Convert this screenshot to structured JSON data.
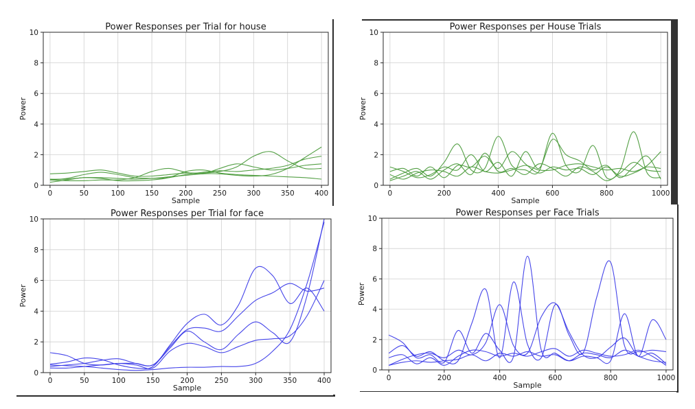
{
  "colors": {
    "house": "#4a9a3a",
    "face": "#3a3ae8"
  },
  "chart_data": [
    {
      "type": "line",
      "title": "Power Responses per Trial for house",
      "xlabel": "Sample",
      "ylabel": "Power",
      "xlim": [
        -10,
        410
      ],
      "ylim": [
        0,
        10
      ],
      "xticks": [
        0,
        50,
        100,
        150,
        200,
        250,
        300,
        350,
        400
      ],
      "yticks": [
        0,
        2,
        4,
        6,
        8,
        10
      ],
      "grid": true,
      "color": "#4a9a3a",
      "x": [
        0,
        25,
        50,
        75,
        100,
        125,
        150,
        175,
        200,
        225,
        250,
        275,
        300,
        325,
        350,
        375,
        400
      ],
      "series": [
        {
          "values": [
            0.75,
            0.8,
            0.9,
            1.0,
            0.8,
            0.6,
            0.6,
            0.7,
            0.8,
            0.8,
            0.9,
            1.2,
            1.9,
            2.2,
            1.6,
            1.1,
            1.1
          ]
        },
        {
          "values": [
            0.35,
            0.45,
            0.7,
            0.85,
            0.7,
            0.5,
            0.45,
            0.5,
            0.7,
            0.85,
            0.95,
            0.9,
            1.0,
            1.1,
            1.3,
            1.7,
            1.9
          ]
        },
        {
          "values": [
            0.4,
            0.4,
            0.5,
            0.5,
            0.45,
            0.4,
            0.45,
            0.55,
            0.65,
            0.75,
            0.75,
            0.65,
            0.6,
            0.7,
            1.1,
            1.8,
            2.5
          ]
        },
        {
          "values": [
            0.35,
            0.3,
            0.3,
            0.35,
            0.35,
            0.5,
            0.9,
            1.1,
            0.85,
            0.75,
            1.1,
            1.4,
            1.2,
            1.0,
            1.1,
            1.3,
            1.4
          ]
        },
        {
          "values": [
            0.2,
            0.35,
            0.5,
            0.45,
            0.3,
            0.3,
            0.35,
            0.5,
            0.9,
            1.0,
            0.8,
            0.7,
            0.65,
            0.6,
            0.55,
            0.5,
            0.4
          ]
        }
      ]
    },
    {
      "type": "line",
      "title": "Power Responses per House Trials",
      "xlabel": "Sample",
      "ylabel": "Power",
      "xlim": [
        -25,
        1025
      ],
      "ylim": [
        0,
        10
      ],
      "xticks": [
        0,
        200,
        400,
        600,
        800,
        1000
      ],
      "yticks": [
        0,
        2,
        4,
        6,
        8,
        10
      ],
      "grid": true,
      "color": "#4a9a3a",
      "x": [
        0,
        50,
        100,
        150,
        200,
        250,
        300,
        350,
        400,
        450,
        500,
        550,
        600,
        650,
        700,
        750,
        800,
        850,
        900,
        950,
        1000
      ],
      "series": [
        {
          "values": [
            0.4,
            0.8,
            1.1,
            0.6,
            1.5,
            2.7,
            1.0,
            1.1,
            3.2,
            1.3,
            1.0,
            0.9,
            3.4,
            1.3,
            0.9,
            2.6,
            0.5,
            1.0,
            3.5,
            0.8,
            0.5
          ]
        },
        {
          "values": [
            1.2,
            0.9,
            0.5,
            0.7,
            1.2,
            1.0,
            2.0,
            0.9,
            1.5,
            0.6,
            2.2,
            1.1,
            3.0,
            2.0,
            1.6,
            1.0,
            1.3,
            0.5,
            1.2,
            1.9,
            0.4
          ]
        },
        {
          "values": [
            0.9,
            1.1,
            0.6,
            1.2,
            0.5,
            1.3,
            1.2,
            1.9,
            1.1,
            2.2,
            1.4,
            0.8,
            1.2,
            1.0,
            1.1,
            0.7,
            1.2,
            0.6,
            0.8,
            1.3,
            2.2
          ]
        },
        {
          "values": [
            0.3,
            0.6,
            0.9,
            0.4,
            1.0,
            1.4,
            0.7,
            2.1,
            0.9,
            1.1,
            0.7,
            1.4,
            1.1,
            0.6,
            1.2,
            0.9,
            0.3,
            0.8,
            1.5,
            1.0,
            0.9
          ]
        },
        {
          "values": [
            0.7,
            0.4,
            0.8,
            1.0,
            0.9,
            0.6,
            1.2,
            0.9,
            0.8,
            1.0,
            1.3,
            1.0,
            1.0,
            1.3,
            1.4,
            1.2,
            1.0,
            1.1,
            0.9,
            1.2,
            1.1
          ]
        }
      ]
    },
    {
      "type": "line",
      "title": "Power Responses per Trial for face",
      "xlabel": "Sample",
      "ylabel": "Power",
      "xlim": [
        -10,
        410
      ],
      "ylim": [
        0,
        10
      ],
      "xticks": [
        0,
        50,
        100,
        150,
        200,
        250,
        300,
        350,
        400
      ],
      "yticks": [
        0,
        2,
        4,
        6,
        8,
        10
      ],
      "grid": true,
      "color": "#3a3ae8",
      "x": [
        0,
        25,
        50,
        75,
        100,
        125,
        150,
        175,
        200,
        225,
        250,
        275,
        300,
        325,
        350,
        375,
        400
      ],
      "series": [
        {
          "values": [
            0.55,
            0.7,
            0.95,
            0.85,
            0.5,
            0.3,
            0.4,
            1.8,
            3.2,
            3.8,
            3.1,
            4.4,
            6.8,
            6.3,
            4.5,
            5.5,
            4.0
          ]
        },
        {
          "values": [
            1.3,
            1.1,
            0.6,
            0.5,
            0.6,
            0.6,
            0.5,
            1.7,
            2.8,
            2.9,
            2.7,
            3.7,
            4.7,
            5.2,
            5.8,
            5.3,
            5.5
          ]
        },
        {
          "values": [
            0.4,
            0.5,
            0.6,
            0.8,
            0.9,
            0.6,
            0.5,
            1.6,
            2.7,
            2.0,
            1.5,
            2.5,
            3.3,
            2.6,
            2.0,
            5.0,
            10.0
          ]
        },
        {
          "values": [
            0.3,
            0.3,
            0.4,
            0.5,
            0.6,
            0.5,
            0.3,
            1.4,
            1.9,
            1.7,
            1.3,
            1.7,
            2.1,
            2.2,
            2.4,
            3.7,
            6.0
          ]
        },
        {
          "values": [
            0.5,
            0.45,
            0.4,
            0.3,
            0.2,
            0.15,
            0.2,
            0.3,
            0.35,
            0.35,
            0.4,
            0.4,
            0.6,
            1.4,
            2.8,
            5.8,
            9.8
          ]
        }
      ]
    },
    {
      "type": "line",
      "title": "Power Responses per Face Trials",
      "xlabel": "Sample",
      "ylabel": "Power",
      "xlim": [
        -25,
        1025
      ],
      "ylim": [
        0,
        10
      ],
      "xticks": [
        0,
        200,
        400,
        600,
        800,
        1000
      ],
      "yticks": [
        0,
        2,
        4,
        6,
        8,
        10
      ],
      "grid": true,
      "color": "#3a3ae8",
      "x": [
        0,
        50,
        100,
        150,
        200,
        250,
        300,
        350,
        400,
        450,
        500,
        550,
        600,
        650,
        700,
        750,
        800,
        850,
        900,
        950,
        1000
      ],
      "series": [
        {
          "values": [
            2.3,
            1.8,
            0.8,
            1.0,
            0.5,
            2.6,
            1.1,
            2.4,
            1.3,
            0.9,
            7.5,
            1.3,
            1.1,
            0.6,
            0.9,
            0.8,
            0.6,
            3.7,
            0.9,
            3.3,
            2.0
          ]
        },
        {
          "values": [
            1.1,
            1.6,
            0.9,
            1.2,
            0.6,
            0.6,
            3.1,
            5.3,
            0.8,
            5.8,
            1.7,
            0.8,
            4.3,
            2.3,
            1.1,
            4.8,
            7.1,
            1.6,
            1.2,
            1.3,
            1.2
          ]
        },
        {
          "values": [
            0.3,
            0.7,
            1.0,
            1.1,
            0.8,
            1.3,
            1.0,
            1.8,
            4.3,
            1.6,
            1.1,
            3.5,
            4.4,
            2.5,
            1.0,
            0.8,
            1.5,
            2.1,
            0.9,
            1.1,
            0.4
          ]
        },
        {
          "values": [
            0.8,
            1.0,
            0.4,
            0.8,
            0.3,
            0.9,
            1.3,
            1.2,
            0.9,
            1.1,
            0.9,
            1.2,
            1.4,
            0.9,
            1.3,
            1.1,
            0.9,
            1.0,
            1.3,
            0.9,
            0.3
          ]
        },
        {
          "values": [
            0.3,
            0.5,
            0.6,
            0.5,
            0.6,
            0.7,
            1.0,
            0.6,
            1.1,
            0.9,
            1.2,
            0.9,
            1.0,
            0.6,
            1.1,
            1.0,
            0.8,
            1.3,
            0.9,
            0.6,
            0.5
          ]
        }
      ]
    }
  ]
}
